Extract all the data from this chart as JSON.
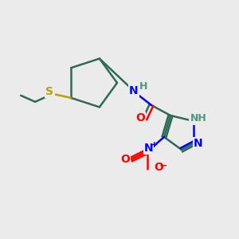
{
  "bg_color": "#ebebeb",
  "bond_color": "#2d6b55",
  "bond_width": 1.8,
  "atom_colors": {
    "N": "#0000ff",
    "O": "#ff0000",
    "S": "#b8a000",
    "C": "#2d6b55",
    "H_label": "#4a9980"
  },
  "font_size": 9,
  "font_size_small": 8,
  "font_size_charge": 7
}
